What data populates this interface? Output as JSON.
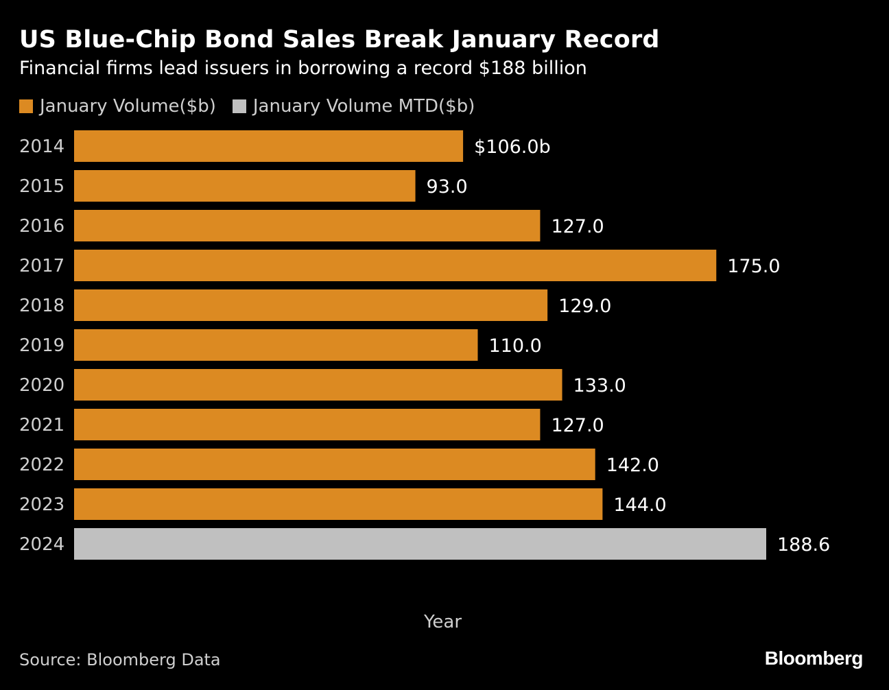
{
  "chart_data": {
    "type": "bar",
    "orientation": "horizontal",
    "title": "US Blue-Chip Bond Sales Break January Record",
    "subtitle": "Financial firms lead issuers in borrowing a record $188 billion",
    "xlabel": "Year",
    "ylabel": "",
    "categories": [
      "2014",
      "2015",
      "2016",
      "2017",
      "2018",
      "2019",
      "2020",
      "2021",
      "2022",
      "2023",
      "2024"
    ],
    "series": [
      {
        "name": "January Volume($b)",
        "color": "#dc8a22",
        "values": [
          106.0,
          93.0,
          127.0,
          175.0,
          129.0,
          110.0,
          133.0,
          127.0,
          142.0,
          144.0,
          null
        ]
      },
      {
        "name": "January Volume MTD($b)",
        "color": "#c0c0c0",
        "values": [
          null,
          null,
          null,
          null,
          null,
          null,
          null,
          null,
          null,
          null,
          188.6
        ]
      }
    ],
    "data_labels": [
      "$106.0b",
      "93.0",
      "127.0",
      "175.0",
      "129.0",
      "110.0",
      "133.0",
      "127.0",
      "142.0",
      "144.0",
      "188.6"
    ],
    "xlim": [
      0,
      188.6
    ],
    "grid": false,
    "legend_position": "top-left"
  },
  "source": "Source: Bloomberg Data",
  "brand": "Bloomberg"
}
